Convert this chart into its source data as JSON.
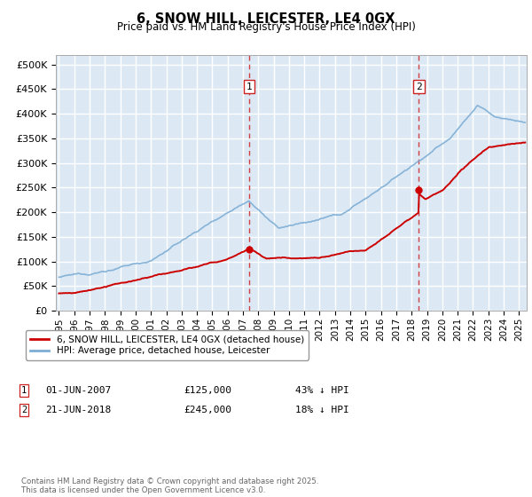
{
  "title": "6, SNOW HILL, LEICESTER, LE4 0GX",
  "subtitle": "Price paid vs. HM Land Registry's House Price Index (HPI)",
  "ylabel_ticks": [
    "£0",
    "£50K",
    "£100K",
    "£150K",
    "£200K",
    "£250K",
    "£300K",
    "£350K",
    "£400K",
    "£450K",
    "£500K"
  ],
  "ytick_vals": [
    0,
    50000,
    100000,
    150000,
    200000,
    250000,
    300000,
    350000,
    400000,
    450000,
    500000
  ],
  "ylim": [
    0,
    520000
  ],
  "xlim_start": 1994.8,
  "xlim_end": 2025.5,
  "marker1_x": 2007.42,
  "marker1_price": 125000,
  "marker1_date": "01-JUN-2007",
  "marker1_hpi": "43% ↓ HPI",
  "marker2_x": 2018.47,
  "marker2_price": 245000,
  "marker2_date": "21-JUN-2018",
  "marker2_hpi": "18% ↓ HPI",
  "red_line_color": "#cc0000",
  "blue_line_color": "#7dadd4",
  "bg_color": "#dce9f5",
  "grid_color": "#ffffff",
  "legend_label_red": "6, SNOW HILL, LEICESTER, LE4 0GX (detached house)",
  "legend_label_blue": "HPI: Average price, detached house, Leicester",
  "footer": "Contains HM Land Registry data © Crown copyright and database right 2025.\nThis data is licensed under the Open Government Licence v3.0.",
  "xtick_years": [
    1995,
    1996,
    1997,
    1998,
    1999,
    2000,
    2001,
    2002,
    2003,
    2004,
    2005,
    2006,
    2007,
    2008,
    2009,
    2010,
    2011,
    2012,
    2013,
    2014,
    2015,
    2016,
    2017,
    2018,
    2019,
    2020,
    2021,
    2022,
    2023,
    2024,
    2025
  ]
}
